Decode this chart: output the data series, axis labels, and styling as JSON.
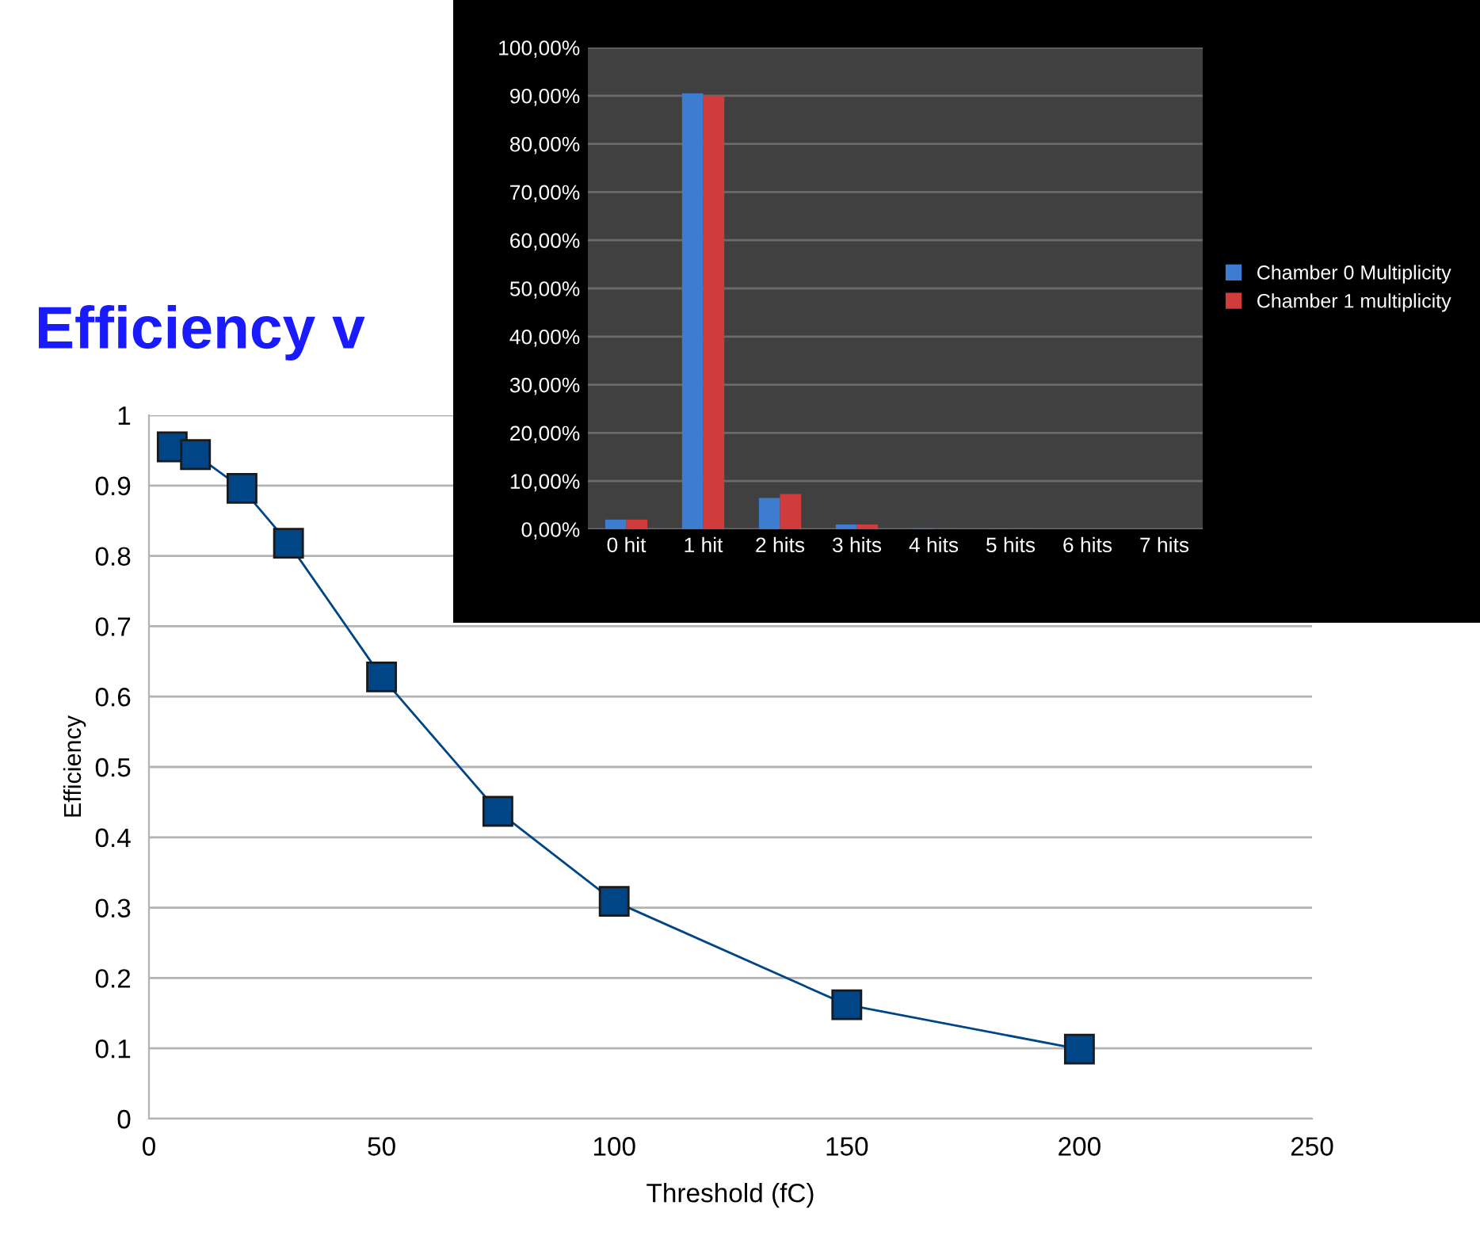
{
  "chart_data": [
    {
      "type": "line",
      "title": "Efficiency v",
      "xlabel": "Threshold (fC)",
      "ylabel": "Efficiency",
      "x": [
        5,
        10,
        20,
        30,
        50,
        75,
        100,
        150,
        200
      ],
      "series": [
        {
          "color": "#004586",
          "values": [
            0.955,
            0.944,
            0.896,
            0.818,
            0.628,
            0.437,
            0.309,
            0.162,
            0.099
          ]
        }
      ],
      "marker": "square",
      "line_style": "solid",
      "xlim": [
        0,
        250
      ],
      "xticks": [
        0,
        50,
        100,
        150,
        200,
        250
      ],
      "ylim": [
        0,
        1
      ],
      "yticks": [
        0,
        0.1,
        0.2,
        0.3,
        0.4,
        0.5,
        0.6,
        0.7,
        0.8,
        0.9,
        1
      ],
      "grid": "y"
    },
    {
      "type": "bar",
      "categories": [
        "0 hit",
        "1 hit",
        "2 hits",
        "3 hits",
        "4 hits",
        "5 hits",
        "6 hits",
        "7 hits"
      ],
      "series": [
        {
          "name": "Chamber 0 Multiplicity",
          "color": "#3c7dd0",
          "values": [
            2,
            90.5,
            6.5,
            1,
            0.2,
            0.1,
            0,
            0
          ]
        },
        {
          "name": "Chamber 1 multiplicity",
          "color": "#d03c3c",
          "values": [
            2,
            90,
            7.3,
            1,
            0.1,
            0.1,
            0,
            0
          ]
        }
      ],
      "ylim": [
        0,
        100
      ],
      "yticks": [
        {
          "value": 0,
          "label": "0,00%"
        },
        {
          "value": 10,
          "label": "10,00%"
        },
        {
          "value": 20,
          "label": "20,00%"
        },
        {
          "value": 30,
          "label": "30,00%"
        },
        {
          "value": 40,
          "label": "40,00%"
        },
        {
          "value": 50,
          "label": "50,00%"
        },
        {
          "value": 60,
          "label": "60,00%"
        },
        {
          "value": 70,
          "label": "70,00%"
        },
        {
          "value": 80,
          "label": "80,00%"
        },
        {
          "value": 90,
          "label": "90,00%"
        },
        {
          "value": 100,
          "label": "100,00%"
        }
      ],
      "grid": "y",
      "legend": "right"
    }
  ]
}
